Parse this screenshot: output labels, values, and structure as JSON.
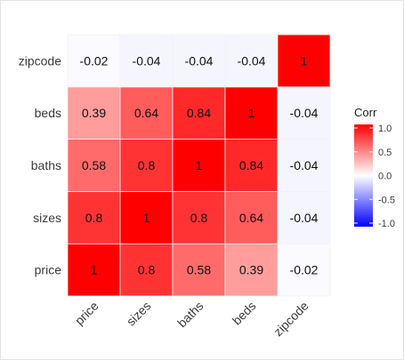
{
  "chart_data": {
    "type": "heatmap",
    "x_categories": [
      "price",
      "sizes",
      "baths",
      "beds",
      "zipcode"
    ],
    "y_categories": [
      "price",
      "sizes",
      "baths",
      "beds",
      "zipcode"
    ],
    "values": [
      [
        1,
        0.8,
        0.58,
        0.39,
        -0.02
      ],
      [
        0.8,
        1,
        0.8,
        0.64,
        -0.04
      ],
      [
        0.58,
        0.8,
        1,
        0.84,
        -0.04
      ],
      [
        0.39,
        0.64,
        0.84,
        1,
        -0.04
      ],
      [
        -0.02,
        -0.04,
        -0.04,
        -0.04,
        1
      ]
    ],
    "cell_labels": [
      [
        "1",
        "0.8",
        "0.58",
        "0.39",
        "-0.02"
      ],
      [
        "0.8",
        "1",
        "0.8",
        "0.64",
        "-0.04"
      ],
      [
        "0.58",
        "0.8",
        "1",
        "0.84",
        "-0.04"
      ],
      [
        "0.39",
        "0.64",
        "0.84",
        "1",
        "-0.04"
      ],
      [
        "-0.02",
        "-0.04",
        "-0.04",
        "-0.04",
        "1"
      ]
    ],
    "legend": {
      "title": "Corr",
      "position": "right",
      "range": [
        -1,
        1
      ],
      "ticks": [
        1.0,
        0.5,
        0.0,
        -0.5,
        -1.0
      ],
      "tick_labels": [
        "1.0",
        "0.5",
        "0.0",
        "-0.5",
        "-1.0"
      ],
      "colors": {
        "low": "#0000ff",
        "mid": "#ffffff",
        "high": "#ff0000"
      }
    },
    "grid": true
  }
}
